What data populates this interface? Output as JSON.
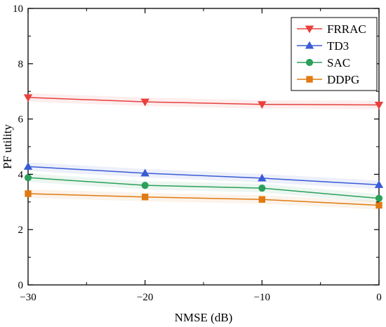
{
  "chart_data": {
    "type": "line",
    "xlabel": "NMSE (dB)",
    "ylabel": "PF utility",
    "x": [
      -30,
      -20,
      -10,
      0
    ],
    "x_tick_labels": [
      "−30",
      "−20",
      "−10",
      "0"
    ],
    "xlim": [
      -30,
      0
    ],
    "ylim": [
      0,
      10
    ],
    "y_ticks": [
      0,
      2,
      4,
      6,
      8,
      10
    ],
    "x_minor_ticks": [
      -25,
      -15,
      -5
    ],
    "y_minor_ticks": [
      1,
      3,
      5,
      7,
      9
    ],
    "grid": false,
    "legend_position": "top-right",
    "series": [
      {
        "name": "FRRAC",
        "values": [
          6.78,
          6.62,
          6.53,
          6.51
        ],
        "color": "#e8403d",
        "marker": "triangle-down"
      },
      {
        "name": "TD3",
        "values": [
          4.28,
          4.04,
          3.86,
          3.62
        ],
        "color": "#3a5bd6",
        "marker": "triangle-up"
      },
      {
        "name": "SAC",
        "values": [
          3.88,
          3.6,
          3.5,
          3.13
        ],
        "color": "#2aa05a",
        "marker": "circle"
      },
      {
        "name": "DDPG",
        "values": [
          3.3,
          3.18,
          3.09,
          2.88
        ],
        "color": "#e07a12",
        "marker": "square"
      }
    ]
  }
}
